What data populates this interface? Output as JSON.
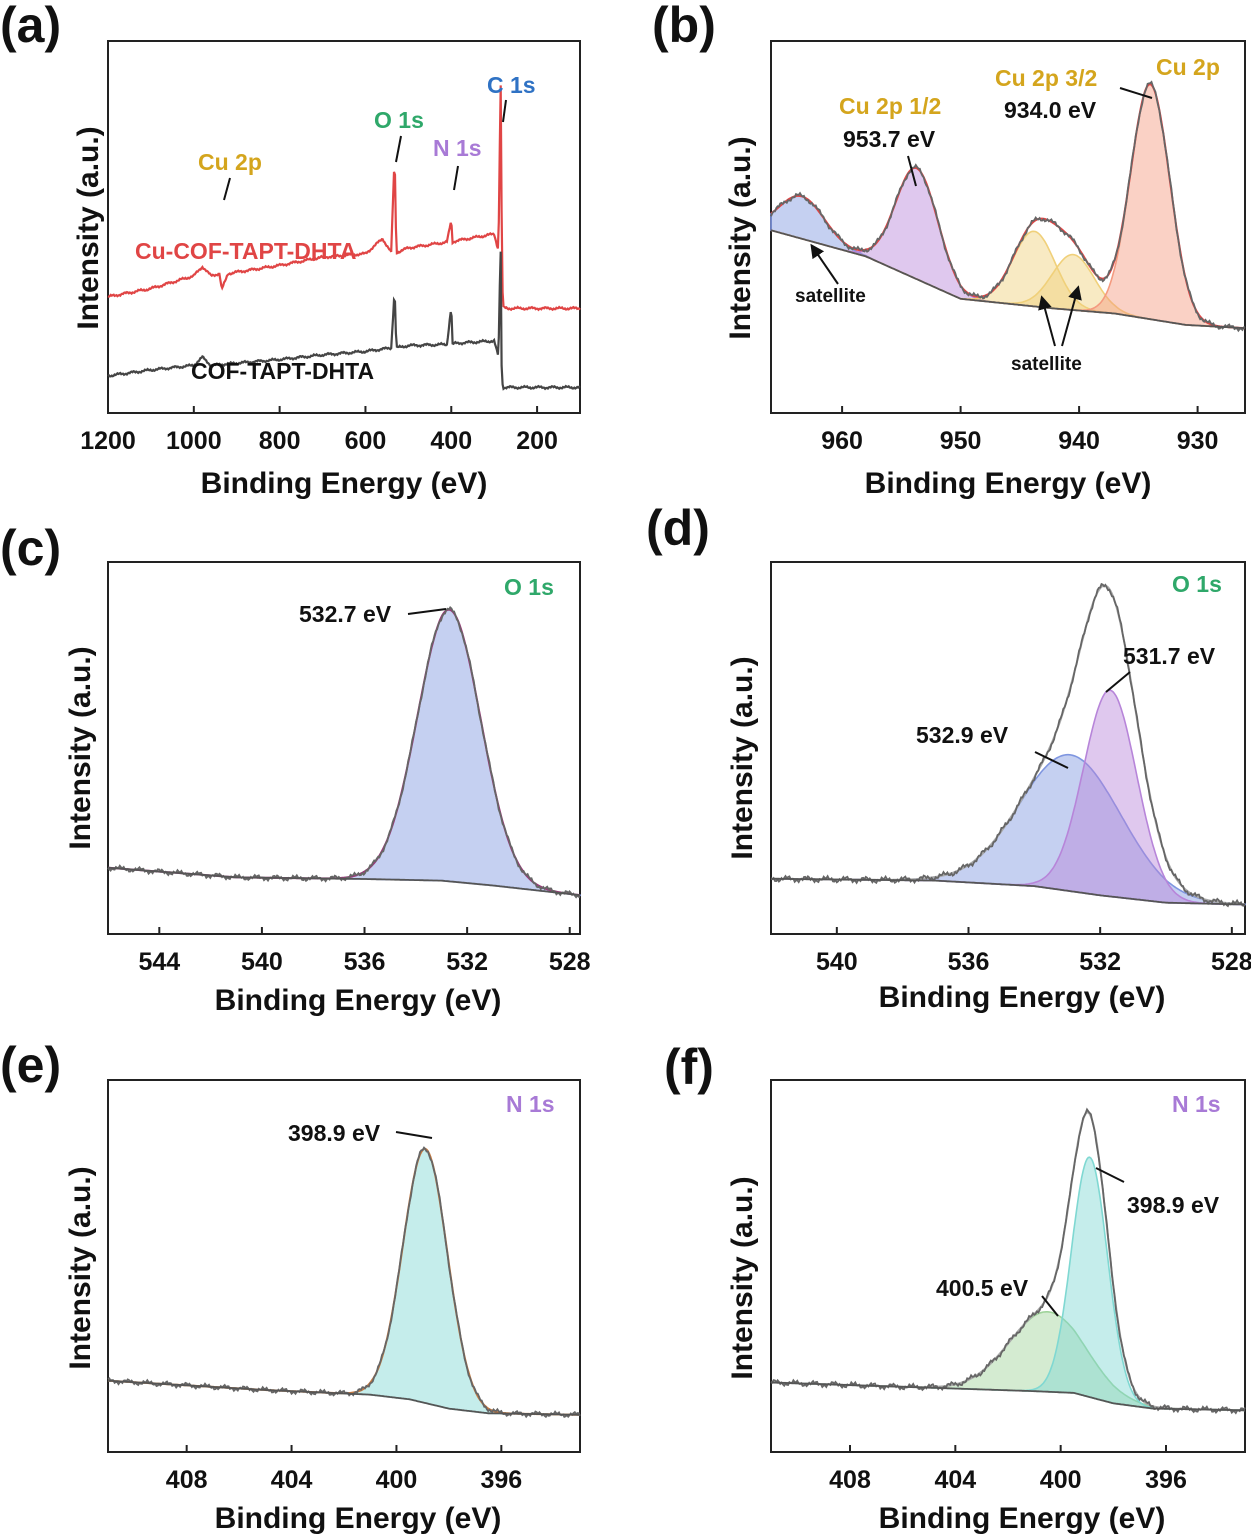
{
  "colors": {
    "red": "#e04545",
    "dark": "#454545",
    "copper": "#d4a51d",
    "oxygen": "#2fa86a",
    "nitrogen": "#a87ad6",
    "carbon": "#2f72c4",
    "fill_blue": "#7f96e0",
    "fill_purple": "#b785d9",
    "fill_orange": "#f49a7f",
    "fill_yellow": "#f0d07a",
    "fill_teal": "#7fd8d2",
    "fill_green": "#9fd39a",
    "fill_grey": "#cccccc"
  },
  "chart_data": [
    {
      "panel": "(a)",
      "type": "line",
      "xlabel": "Binding Energy (eV)",
      "ylabel": "Intensity (a.u.)",
      "xlim": [
        1200,
        100
      ],
      "xticks": [
        "1200",
        "1000",
        "800",
        "600",
        "400",
        "200"
      ],
      "xtickvals": [
        1200,
        1000,
        800,
        600,
        400,
        200
      ],
      "series": [
        {
          "name": "Cu-COF-TAPT-DHTA",
          "x": [
            1200,
            1100,
            1000,
            980,
            960,
            940,
            935,
            920,
            800,
            700,
            600,
            560,
            540,
            532,
            528,
            500,
            410,
            400,
            397,
            390,
            300,
            290,
            285,
            283,
            280,
            270,
            200,
            100
          ],
          "y": [
            5.0,
            5.35,
            5.9,
            6.3,
            5.9,
            6.0,
            5.3,
            6.0,
            6.35,
            6.7,
            6.85,
            7.5,
            6.9,
            11.1,
            6.9,
            7.1,
            7.35,
            8.3,
            7.35,
            7.4,
            7.7,
            7.0,
            14.6,
            9.3,
            4.55,
            4.5,
            4.5,
            4.5
          ]
        },
        {
          "name": "COF-TAPT-DHTA",
          "x": [
            1200,
            1100,
            1000,
            980,
            960,
            800,
            700,
            600,
            540,
            532,
            528,
            500,
            410,
            400,
            397,
            390,
            300,
            290,
            285,
            283,
            280,
            270,
            200,
            100
          ],
          "y": [
            1.6,
            1.85,
            2.05,
            2.4,
            2.05,
            2.3,
            2.5,
            2.65,
            2.8,
            5.3,
            2.8,
            2.9,
            2.95,
            4.6,
            2.95,
            3.0,
            3.1,
            2.4,
            7.5,
            2.2,
            1.1,
            1.1,
            1.1,
            1.1
          ]
        }
      ],
      "peak_labels": [
        {
          "text": "Cu 2p",
          "x": 932
        },
        {
          "text": "O 1s",
          "x": 532
        },
        {
          "text": "N 1s",
          "x": 400
        },
        {
          "text": "C 1s",
          "x": 285
        }
      ]
    },
    {
      "panel": "(b)",
      "type": "line",
      "xlabel": "Binding Energy (eV)",
      "ylabel": "Intensity (a.u.)",
      "xlim": [
        966,
        926
      ],
      "xticks": [
        "960",
        "950",
        "940",
        "930"
      ],
      "xtickvals": [
        960,
        950,
        940,
        930
      ],
      "components": [
        {
          "label": "satellite",
          "center": 963.4,
          "fwhm": 4.5,
          "height": 1.3,
          "fill": "fill_blue"
        },
        {
          "label": "Cu 2p 1/2",
          "center": 953.7,
          "fwhm": 4.2,
          "height": 3.4,
          "fill": "fill_purple"
        },
        {
          "label": "satellite",
          "center": 943.8,
          "fwhm": 4.2,
          "height": 2.3,
          "fill": "fill_yellow"
        },
        {
          "label": "satellite",
          "center": 940.5,
          "fwhm": 4.2,
          "height": 1.7,
          "fill": "fill_yellow"
        },
        {
          "label": "Cu 2p 3/2",
          "center": 934.0,
          "fwhm": 3.9,
          "height": 7.2,
          "fill": "fill_orange"
        }
      ],
      "background": {
        "x": [
          966,
          958,
          950,
          942,
          937,
          931,
          926
        ],
        "y": [
          3.0,
          2.2,
          0.9,
          0.6,
          0.45,
          0.1,
          0.0
        ]
      },
      "annotations": {
        "element": "Cu 2p",
        "cu_half_label": "Cu 2p 1/2",
        "cu_half_value": "953.7 eV",
        "cu_three_label": "Cu 2p 3/2",
        "cu_three_value": "934.0 eV",
        "satellite_left": "satellite",
        "satellite_right": "satellite"
      }
    },
    {
      "panel": "(c)",
      "type": "line",
      "xlabel": "Binding Energy (eV)",
      "ylabel": "Intensity (a.u.)",
      "xlim": [
        546,
        527.6
      ],
      "xticks": [
        "544",
        "540",
        "536",
        "532",
        "528"
      ],
      "xtickvals": [
        544,
        540,
        536,
        532,
        528
      ],
      "components": [
        {
          "label": "532.7 eV",
          "center": 532.7,
          "fwhm": 2.9,
          "height": 8.4,
          "fill": "fill_blue"
        }
      ],
      "background": {
        "x": [
          546,
          541,
          536,
          533,
          531,
          527.6
        ],
        "y": [
          0.55,
          0.25,
          0.2,
          0.15,
          0.0,
          -0.3
        ]
      },
      "annotations": {
        "element": "O 1s",
        "peak_value": "532.7 eV"
      }
    },
    {
      "panel": "(d)",
      "type": "line",
      "xlabel": "Binding Energy (eV)",
      "ylabel": "Intensity (a.u.)",
      "xlim": [
        542,
        527.6
      ],
      "xticks": [
        "540",
        "536",
        "532",
        "528"
      ],
      "xtickvals": [
        540,
        536,
        532,
        528
      ],
      "components": [
        {
          "label": "532.9 eV",
          "center": 532.9,
          "fwhm": 3.6,
          "height": 3.7,
          "fill": "fill_blue"
        },
        {
          "label": "531.7 eV",
          "center": 531.7,
          "fwhm": 1.9,
          "height": 5.6,
          "fill": "fill_purple"
        }
      ],
      "background": {
        "x": [
          542,
          537,
          534,
          532,
          530,
          527.6
        ],
        "y": [
          0.0,
          -0.05,
          -0.2,
          -0.45,
          -0.65,
          -0.7
        ]
      },
      "annotations": {
        "element": "O 1s",
        "peak_value_1": "532.9 eV",
        "peak_value_2": "531.7 eV"
      }
    },
    {
      "panel": "(e)",
      "type": "line",
      "xlabel": "Binding Energy (eV)",
      "ylabel": "Intensity (a.u.)",
      "xlim": [
        411,
        393
      ],
      "xticks": [
        "408",
        "404",
        "400",
        "396"
      ],
      "xtickvals": [
        408,
        404,
        400,
        396
      ],
      "components": [
        {
          "label": "398.9 eV",
          "center": 398.9,
          "fwhm": 2.0,
          "height": 8.2,
          "fill": "fill_teal"
        }
      ],
      "background": {
        "x": [
          411,
          405,
          401,
          399.5,
          398,
          396.5,
          393
        ],
        "y": [
          0.6,
          0.3,
          0.15,
          0.0,
          -0.3,
          -0.45,
          -0.5
        ]
      },
      "annotations": {
        "element": "N 1s",
        "peak_value": "398.9 eV"
      }
    },
    {
      "panel": "(f)",
      "type": "line",
      "xlabel": "Binding Energy (eV)",
      "ylabel": "Intensity (a.u.)",
      "xlim": [
        411,
        393
      ],
      "xticks": [
        "408",
        "404",
        "400",
        "396"
      ],
      "xtickvals": [
        408,
        404,
        400,
        396
      ],
      "components": [
        {
          "label": "400.5 eV",
          "center": 400.5,
          "fwhm": 3.4,
          "height": 2.3,
          "fill": "fill_green"
        },
        {
          "label": "398.9 eV",
          "center": 398.9,
          "fwhm": 1.6,
          "height": 6.9,
          "fill": "fill_teal"
        }
      ],
      "background": {
        "x": [
          411,
          405,
          401,
          399.5,
          398,
          396.5,
          393
        ],
        "y": [
          0.3,
          0.15,
          0.05,
          0.0,
          -0.3,
          -0.45,
          -0.5
        ]
      },
      "annotations": {
        "element": "N 1s",
        "peak_value_1": "400.5 eV",
        "peak_value_2": "398.9 eV"
      }
    }
  ]
}
